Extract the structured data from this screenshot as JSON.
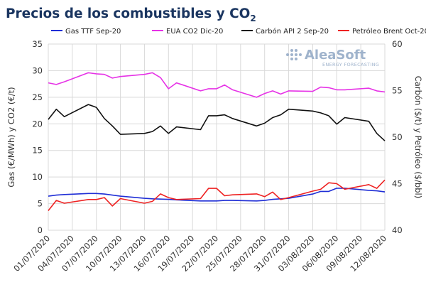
{
  "title_main": "Precios de los combustibles y CO",
  "title_sub": "2",
  "logo": {
    "name": "AleaSoft",
    "tagline": "ENERGY FORECASTING"
  },
  "chart_data": {
    "type": "line",
    "x": [
      "01/07/2020",
      "02/07/2020",
      "03/07/2020",
      "06/07/2020",
      "07/07/2020",
      "08/07/2020",
      "09/07/2020",
      "10/07/2020",
      "13/07/2020",
      "14/07/2020",
      "15/07/2020",
      "16/07/2020",
      "17/07/2020",
      "20/07/2020",
      "21/07/2020",
      "22/07/2020",
      "23/07/2020",
      "24/07/2020",
      "27/07/2020",
      "28/07/2020",
      "29/07/2020",
      "30/07/2020",
      "31/07/2020",
      "03/08/2020",
      "04/08/2020",
      "05/08/2020",
      "06/08/2020",
      "07/08/2020",
      "10/08/2020",
      "11/08/2020",
      "12/08/2020"
    ],
    "x_ticks": [
      "01/07/2020",
      "04/07/2020",
      "07/07/2020",
      "10/07/2020",
      "13/07/2020",
      "16/07/2020",
      "19/07/2020",
      "22/07/2020",
      "25/07/2020",
      "28/07/2020",
      "31/07/2020",
      "03/08/2020",
      "06/08/2020",
      "09/08/2020",
      "12/08/2020"
    ],
    "y_left": {
      "label": "Gas (€/MWh) y CO2 (€/t)",
      "range": [
        0,
        35
      ],
      "ticks": [
        0,
        5,
        10,
        15,
        20,
        25,
        30,
        35
      ]
    },
    "y_right": {
      "label": "Carbón ($/t) y Petróleo ($/bbl)",
      "range": [
        40,
        60
      ],
      "ticks": [
        40,
        45,
        50,
        55,
        60
      ]
    },
    "series": [
      {
        "name": "Gas TTF Sep-20",
        "color": "#1f2ed6",
        "axis": "left",
        "values": [
          6.4,
          6.6,
          6.7,
          6.9,
          6.9,
          6.8,
          6.6,
          6.4,
          6.0,
          5.9,
          5.85,
          5.8,
          5.7,
          5.5,
          5.5,
          5.5,
          5.6,
          5.6,
          5.5,
          5.6,
          5.8,
          5.9,
          6.0,
          6.8,
          7.3,
          7.3,
          7.9,
          7.9,
          7.5,
          7.4,
          7.2
        ]
      },
      {
        "name": "EUA CO2 Dic-20",
        "color": "#e632e6",
        "axis": "left",
        "values": [
          27.7,
          27.4,
          27.9,
          29.6,
          29.4,
          29.3,
          28.6,
          28.9,
          29.3,
          29.6,
          28.7,
          26.6,
          27.7,
          26.2,
          26.6,
          26.6,
          27.3,
          26.4,
          25.0,
          25.7,
          26.2,
          25.6,
          26.2,
          26.1,
          26.9,
          26.8,
          26.4,
          26.4,
          26.7,
          26.2,
          26.0
        ]
      },
      {
        "name": "Carbón API 2 Sep-20",
        "color": "#111111",
        "axis": "right",
        "values": [
          51.9,
          53.0,
          52.2,
          53.5,
          53.2,
          52.0,
          51.2,
          50.3,
          50.4,
          50.6,
          51.2,
          50.4,
          51.1,
          50.8,
          52.3,
          52.3,
          52.4,
          52.0,
          51.2,
          51.5,
          52.1,
          52.4,
          53.0,
          52.8,
          52.6,
          52.3,
          51.4,
          52.1,
          51.7,
          50.4,
          49.6
        ]
      },
      {
        "name": "Petróleo Brent Oct-20",
        "color": "#ee2222",
        "axis": "right",
        "values": [
          42.1,
          43.2,
          42.9,
          43.3,
          43.3,
          43.5,
          42.6,
          43.4,
          42.9,
          43.1,
          43.9,
          43.5,
          43.3,
          43.4,
          44.5,
          44.5,
          43.7,
          43.8,
          43.9,
          43.6,
          44.1,
          43.3,
          43.5,
          44.2,
          44.4,
          45.1,
          45.0,
          44.4,
          44.9,
          44.5,
          45.4
        ]
      }
    ],
    "grid": true,
    "legend": "top"
  }
}
